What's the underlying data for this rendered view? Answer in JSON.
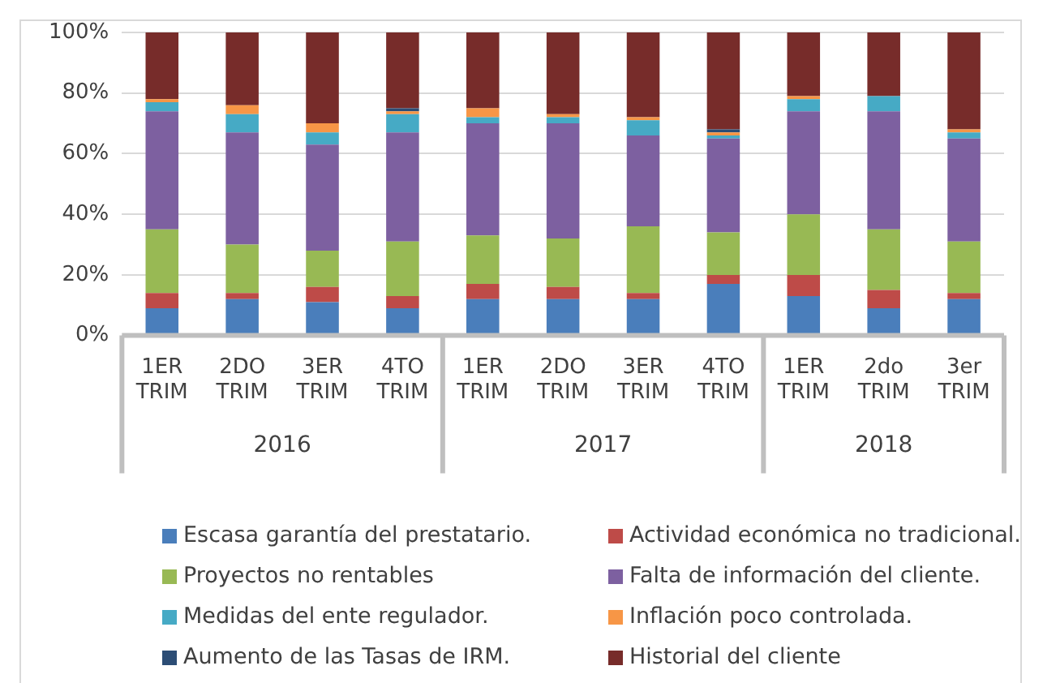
{
  "chart_data": {
    "type": "bar",
    "stacked": true,
    "categories": [
      "1ER TRIM",
      "2DO TRIM",
      "3ER TRIM",
      "4TO TRIM",
      "1ER TRIM",
      "2DO TRIM",
      "3ER TRIM",
      "4TO TRIM",
      "1ER TRIM",
      "2do TRIM",
      "3er TRIM"
    ],
    "annotations": [
      "2016",
      "2017",
      "2018"
    ],
    "series": [
      {
        "name": "Escasa garantía del prestatario.",
        "color": "#4a7ebb",
        "values": [
          9,
          12,
          11,
          9,
          12,
          12,
          12,
          17,
          13,
          9,
          12
        ]
      },
      {
        "name": "Actividad económica no tradicional.",
        "color": "#be4b48",
        "values": [
          5,
          2,
          5,
          4,
          5,
          4,
          2,
          3,
          7,
          6,
          2
        ]
      },
      {
        "name": "Proyectos no rentables",
        "color": "#98b954",
        "values": [
          21,
          16,
          12,
          18,
          16,
          16,
          22,
          14,
          20,
          20,
          17
        ]
      },
      {
        "name": "Falta de información del cliente.",
        "color": "#7d60a0",
        "values": [
          39,
          37,
          35,
          36,
          37,
          38,
          30,
          31,
          34,
          39,
          34
        ]
      },
      {
        "name": "Medidas del ente regulador.",
        "color": "#46aac5",
        "values": [
          3,
          6,
          4,
          6,
          2,
          2,
          5,
          1,
          4,
          5,
          2
        ]
      },
      {
        "name": "Inflación poco controlada.",
        "color": "#f79646",
        "values": [
          1,
          3,
          3,
          1,
          3,
          1,
          1,
          1,
          1,
          0,
          1
        ]
      },
      {
        "name": "Aumento de las Tasas de IRM.",
        "color": "#2c4d75",
        "values": [
          0,
          0,
          0,
          1,
          0,
          0,
          0,
          1,
          0,
          0,
          0
        ]
      },
      {
        "name": "Historial del cliente",
        "color": "#772c2a",
        "values": [
          22,
          24,
          30,
          25,
          25,
          27,
          28,
          32,
          21,
          21,
          32
        ]
      }
    ],
    "ylim": [
      0,
      100
    ],
    "yticks": [
      {
        "value": 0,
        "label": "0%"
      },
      {
        "value": 20,
        "label": "20%"
      },
      {
        "value": 40,
        "label": "40%"
      },
      {
        "value": 60,
        "label": "60%"
      },
      {
        "value": 80,
        "label": "80%"
      },
      {
        "value": 100,
        "label": "100%"
      }
    ],
    "grid": "y",
    "legend": "bottom"
  }
}
